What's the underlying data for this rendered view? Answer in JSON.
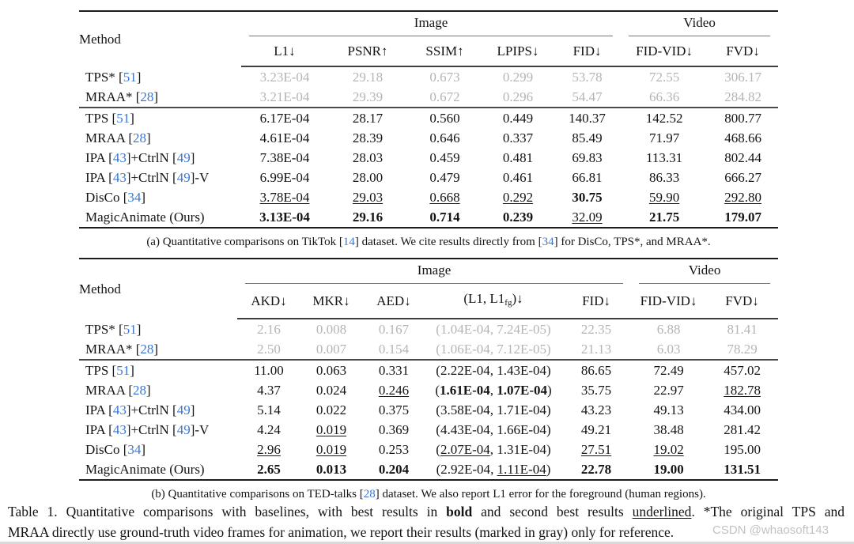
{
  "colors": {
    "citation_blue": "#3b77d2",
    "reference_gray": "#b5b5b5",
    "rule_black": "#1c1c1c"
  },
  "tables": {
    "a": {
      "method_header": "Method",
      "groups": [
        {
          "label": "Image"
        },
        {
          "label": "Video"
        }
      ],
      "columns": [
        "L1↓",
        "PSNR↑",
        "SSIM↑",
        "LPIPS↓",
        "FID↓",
        "FID-VID↓",
        "FVD↓"
      ],
      "rows": [
        {
          "gray": true,
          "method": [
            {
              "t": "TPS* ["
            },
            {
              "t": "51",
              "cite": 1
            },
            {
              "t": "]"
            }
          ],
          "cells": [
            "3.23E-04",
            "29.18",
            "0.673",
            "0.299",
            "53.78",
            "72.55",
            "306.17"
          ]
        },
        {
          "gray": true,
          "method": [
            {
              "t": "MRAA* ["
            },
            {
              "t": "28",
              "cite": 1
            },
            {
              "t": "]"
            }
          ],
          "cells": [
            "3.21E-04",
            "29.39",
            "0.672",
            "0.296",
            "54.47",
            "66.36",
            "284.82"
          ]
        },
        {
          "sep": true,
          "method": [
            {
              "t": "TPS ["
            },
            {
              "t": "51",
              "cite": 1
            },
            {
              "t": "]"
            }
          ],
          "cells": [
            "6.17E-04",
            "28.17",
            "0.560",
            "0.449",
            "140.37",
            "142.52",
            "800.77"
          ]
        },
        {
          "method": [
            {
              "t": "MRAA ["
            },
            {
              "t": "28",
              "cite": 1
            },
            {
              "t": "]"
            }
          ],
          "cells": [
            "4.61E-04",
            "28.39",
            "0.646",
            "0.337",
            "85.49",
            "71.97",
            "468.66"
          ]
        },
        {
          "method": [
            {
              "t": "IPA ["
            },
            {
              "t": "43",
              "cite": 1
            },
            {
              "t": "]+CtrlN ["
            },
            {
              "t": "49",
              "cite": 1
            },
            {
              "t": "]"
            }
          ],
          "cells": [
            "7.38E-04",
            "28.03",
            "0.459",
            "0.481",
            "69.83",
            "113.31",
            "802.44"
          ]
        },
        {
          "method": [
            {
              "t": "IPA ["
            },
            {
              "t": "43",
              "cite": 1
            },
            {
              "t": "]+CtrlN ["
            },
            {
              "t": "49",
              "cite": 1
            },
            {
              "t": "]-V"
            }
          ],
          "cells": [
            "6.99E-04",
            "28.00",
            "0.479",
            "0.461",
            "66.81",
            "86.33",
            "666.27"
          ]
        },
        {
          "method": [
            {
              "t": "DisCo ["
            },
            {
              "t": "34",
              "cite": 1
            },
            {
              "t": "]"
            }
          ],
          "cells": [
            {
              "t": "3.78E-04",
              "u": 1
            },
            {
              "t": "29.03",
              "u": 1
            },
            {
              "t": "0.668",
              "u": 1
            },
            {
              "t": "0.292",
              "u": 1
            },
            {
              "t": "30.75",
              "b": 1
            },
            {
              "t": "59.90",
              "u": 1
            },
            {
              "t": "292.80",
              "u": 1
            }
          ]
        },
        {
          "method": [
            {
              "t": "MagicAnimate (Ours)"
            }
          ],
          "cells": [
            {
              "t": "3.13E-04",
              "b": 1
            },
            {
              "t": "29.16",
              "b": 1
            },
            {
              "t": "0.714",
              "b": 1
            },
            {
              "t": "0.239",
              "b": 1
            },
            {
              "t": "32.09",
              "u": 1
            },
            {
              "t": "21.75",
              "b": 1
            },
            {
              "t": "179.07",
              "b": 1
            }
          ]
        }
      ],
      "caption": [
        {
          "t": "(a) Quantitative comparisons on TikTok ["
        },
        {
          "t": "14",
          "cite": 1
        },
        {
          "t": "] dataset. We cite results directly from ["
        },
        {
          "t": "34",
          "cite": 1
        },
        {
          "t": "] for DisCo, TPS*, and MRAA*."
        }
      ]
    },
    "b": {
      "method_header": "Method",
      "groups": [
        {
          "label": "Image"
        },
        {
          "label": "Video"
        }
      ],
      "columns": [
        "AKD↓",
        "MKR↓",
        "AED↓",
        [
          {
            "t": "(L1, L1"
          },
          {
            "t": "fg",
            "sub": 1
          },
          {
            "t": ")↓"
          }
        ],
        "FID↓",
        "FID-VID↓",
        "FVD↓"
      ],
      "rows": [
        {
          "gray": true,
          "method": [
            {
              "t": "TPS* ["
            },
            {
              "t": "51",
              "cite": 1
            },
            {
              "t": "]"
            }
          ],
          "cells": [
            "2.16",
            "0.008",
            "0.167",
            "(1.04E-04, 7.24E-05)",
            "22.35",
            "6.88",
            "81.41"
          ]
        },
        {
          "gray": true,
          "method": [
            {
              "t": "MRAA* ["
            },
            {
              "t": "28",
              "cite": 1
            },
            {
              "t": "]"
            }
          ],
          "cells": [
            "2.50",
            "0.007",
            "0.154",
            "(1.06E-04, 7.12E-05)",
            "21.13",
            "6.03",
            "78.29"
          ]
        },
        {
          "sep": true,
          "method": [
            {
              "t": "TPS ["
            },
            {
              "t": "51",
              "cite": 1
            },
            {
              "t": "]"
            }
          ],
          "cells": [
            "11.00",
            "0.063",
            "0.331",
            "(2.22E-04, 1.43E-04)",
            "86.65",
            "72.49",
            "457.02"
          ]
        },
        {
          "method": [
            {
              "t": "MRAA ["
            },
            {
              "t": "28",
              "cite": 1
            },
            {
              "t": "]"
            }
          ],
          "cells": [
            "4.37",
            "0.024",
            {
              "t": "0.246",
              "u": 1
            },
            [
              {
                "t": "("
              },
              {
                "t": "1.61E-04",
                "b": 1
              },
              {
                "t": ", "
              },
              {
                "t": "1.07E-04",
                "b": 1
              },
              {
                "t": ")"
              }
            ],
            "35.75",
            "22.97",
            {
              "t": "182.78",
              "u": 1
            }
          ]
        },
        {
          "method": [
            {
              "t": "IPA ["
            },
            {
              "t": "43",
              "cite": 1
            },
            {
              "t": "]+CtrlN ["
            },
            {
              "t": "49",
              "cite": 1
            },
            {
              "t": "]"
            }
          ],
          "cells": [
            "5.14",
            "0.022",
            "0.375",
            "(3.58E-04, 1.71E-04)",
            "43.23",
            "49.13",
            "434.00"
          ]
        },
        {
          "method": [
            {
              "t": "IPA ["
            },
            {
              "t": "43",
              "cite": 1
            },
            {
              "t": "]+CtrlN ["
            },
            {
              "t": "49",
              "cite": 1
            },
            {
              "t": "]-V"
            }
          ],
          "cells": [
            "4.24",
            {
              "t": "0.019",
              "u": 1
            },
            "0.369",
            "(4.43E-04, 1.66E-04)",
            "49.21",
            "38.48",
            "281.42"
          ]
        },
        {
          "method": [
            {
              "t": "DisCo ["
            },
            {
              "t": "34",
              "cite": 1
            },
            {
              "t": "]"
            }
          ],
          "cells": [
            {
              "t": "2.96",
              "u": 1
            },
            {
              "t": "0.019",
              "u": 1
            },
            "0.253",
            [
              {
                "t": "("
              },
              {
                "t": "2.07E-04",
                "u": 1
              },
              {
                "t": ", 1.31E-04)"
              }
            ],
            {
              "t": "27.51",
              "u": 1
            },
            {
              "t": "19.02",
              "u": 1
            },
            "195.00"
          ]
        },
        {
          "method": [
            {
              "t": "MagicAnimate (Ours)"
            }
          ],
          "cells": [
            {
              "t": "2.65",
              "b": 1
            },
            {
              "t": "0.013",
              "b": 1
            },
            {
              "t": "0.204",
              "b": 1
            },
            [
              {
                "t": "("
              },
              {
                "t": "2.92E-04"
              },
              {
                "t": ", "
              },
              {
                "t": "1.11E-04",
                "u": 1
              },
              {
                "t": ")"
              }
            ],
            {
              "t": "22.78",
              "b": 1
            },
            {
              "t": "19.00",
              "b": 1
            },
            {
              "t": "131.51",
              "b": 1
            }
          ]
        }
      ],
      "caption": [
        {
          "t": "(b) Quantitative comparisons on TED-talks ["
        },
        {
          "t": "28",
          "cite": 1
        },
        {
          "t": "] dataset. We also report L1 error for the foreground (human regions)."
        }
      ]
    }
  },
  "footer": {
    "caption_line1": [
      {
        "t": "Table 1.  Quantitative comparisons with baselines, with best results in "
      },
      {
        "t": "bold",
        "b": 1
      },
      {
        "t": " and second best results "
      },
      {
        "t": "underlined",
        "u": 1
      },
      {
        "t": ".  *The original TPS and"
      }
    ],
    "caption_line2": [
      {
        "t": "MRAA directly use ground-truth video frames for animation, we report their results (marked in gray) only for reference."
      }
    ],
    "watermark": "CSDN @whaosoft143"
  }
}
